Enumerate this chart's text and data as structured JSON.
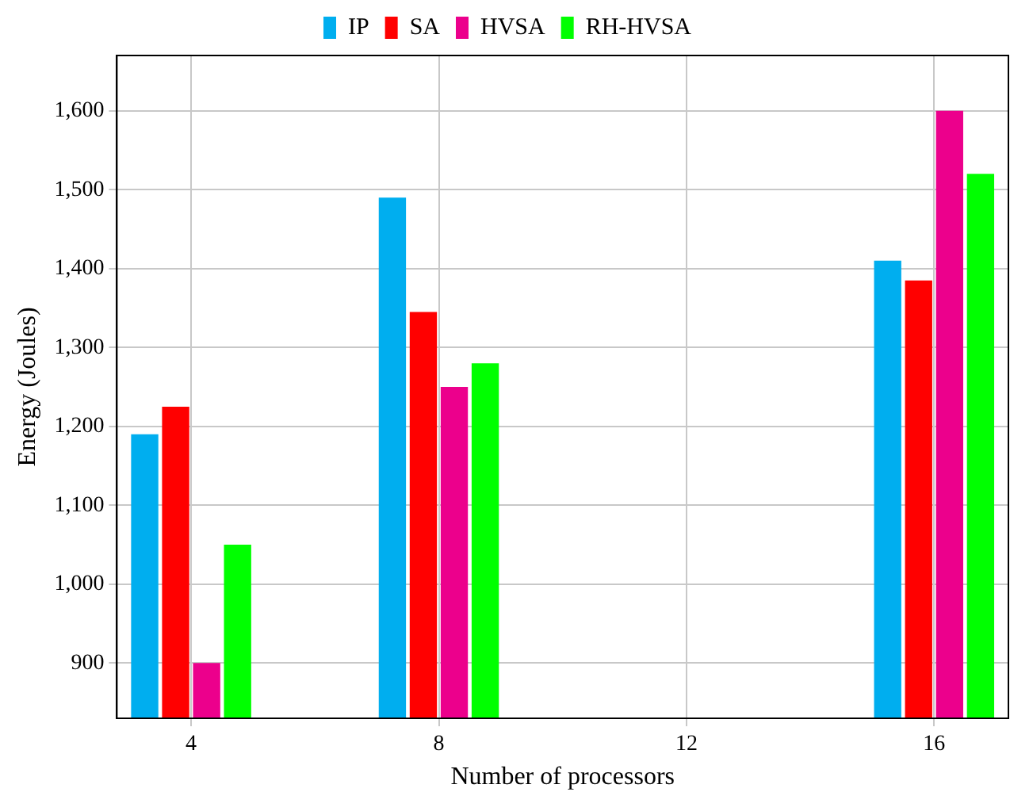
{
  "chart_data": {
    "type": "bar",
    "xlabel": "Number of processors",
    "ylabel": "Energy (Joules)",
    "x": [
      4,
      8,
      16
    ],
    "series": [
      {
        "name": "IP",
        "color": "#00aeef",
        "values": [
          1190,
          1490,
          1410
        ]
      },
      {
        "name": "SA",
        "color": "#ff0000",
        "values": [
          1225,
          1345,
          1385
        ]
      },
      {
        "name": "HVSA",
        "color": "#ec008c",
        "values": [
          900,
          1250,
          1600
        ]
      },
      {
        "name": "RH-HVSA",
        "color": "#00ff00",
        "values": [
          1050,
          1280,
          1520
        ]
      }
    ],
    "xlim": [
      2.8,
      17.2
    ],
    "xticks": [
      4,
      8,
      12,
      16
    ],
    "ylim": [
      830,
      1670
    ],
    "yticks": [
      {
        "value": 900,
        "label": "900"
      },
      {
        "value": 1000,
        "label": "1,000"
      },
      {
        "value": 1100,
        "label": "1,100"
      },
      {
        "value": 1200,
        "label": "1,200"
      },
      {
        "value": 1300,
        "label": "1,300"
      },
      {
        "value": 1400,
        "label": "1,400"
      },
      {
        "value": 1500,
        "label": "1,500"
      },
      {
        "value": 1600,
        "label": "1,600"
      }
    ],
    "grid": true,
    "legend": "top"
  }
}
